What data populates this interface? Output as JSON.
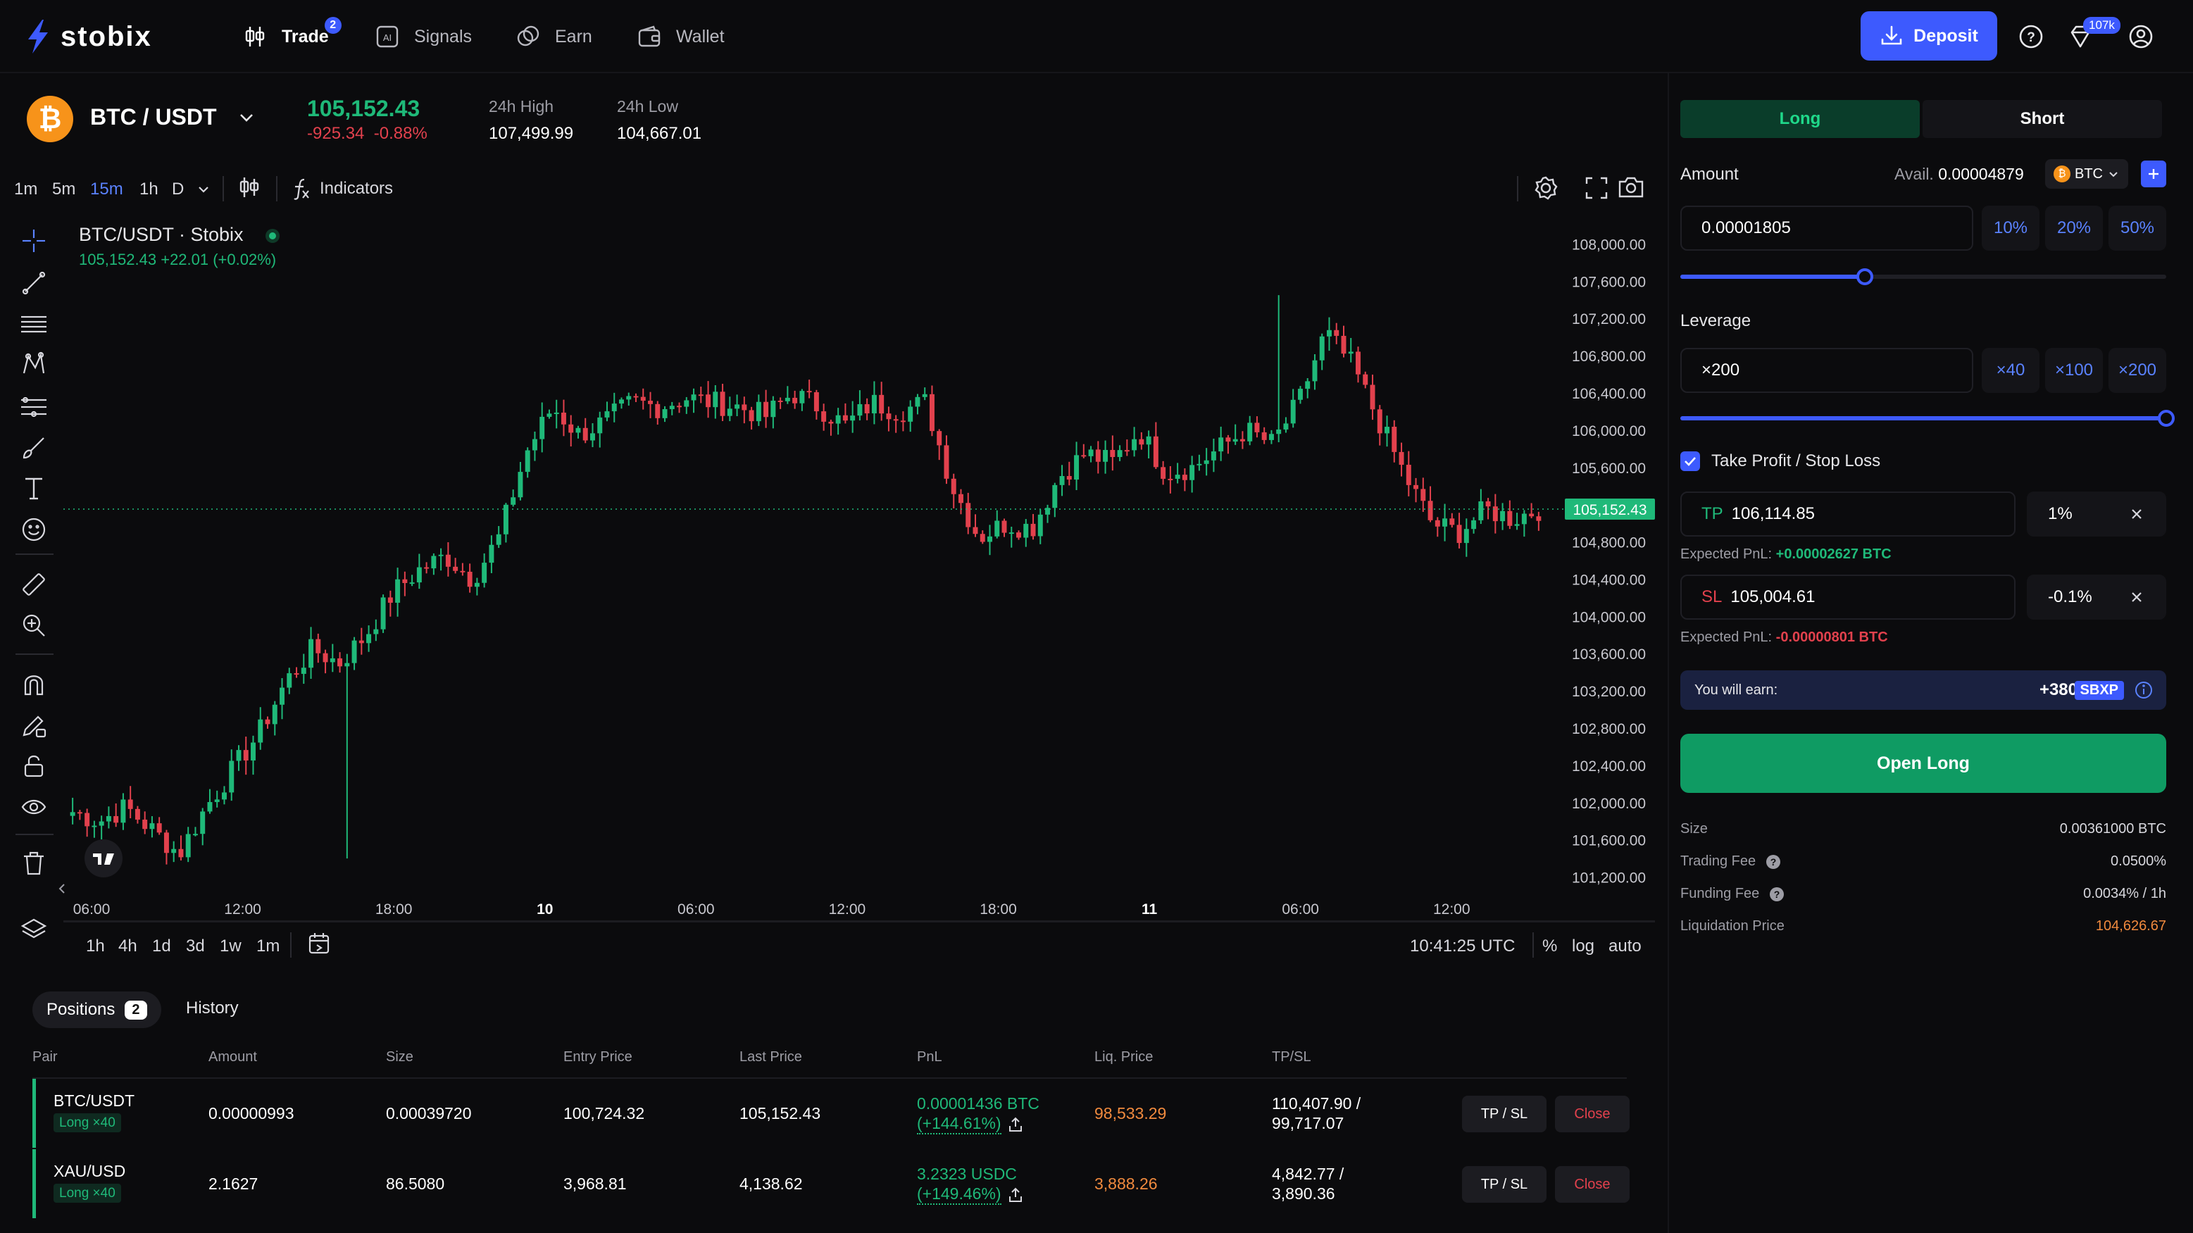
{
  "nav": {
    "logo": "stobix",
    "items": [
      {
        "label": "Trade",
        "badge": "2",
        "icon": "candles-icon"
      },
      {
        "label": "Signals",
        "icon": "ai-icon"
      },
      {
        "label": "Earn",
        "icon": "coins-icon"
      },
      {
        "label": "Wallet",
        "icon": "wallet-icon"
      }
    ],
    "deposit_label": "Deposit",
    "gift_badge": "107k"
  },
  "pair": {
    "coin_symbol": "₿",
    "name": "BTC / USDT",
    "price": "105,152.43",
    "change_abs": "-925.34",
    "change_pct": "-0.88%",
    "high_label": "24h High",
    "high_value": "107,499.99",
    "low_label": "24h Low",
    "low_value": "104,667.01"
  },
  "toolbar": {
    "timeframes": [
      "1m",
      "5m",
      "15m",
      "1h",
      "D"
    ],
    "active_timeframe": "15m",
    "indicators_label": "Indicators"
  },
  "chart_data": {
    "type": "candlestick",
    "legend_title": "BTC/USDT · Stobix",
    "legend_values": "105,152.43  +22.01 (+0.02%)",
    "y_ticks": [
      "108,000.00",
      "107,600.00",
      "107,200.00",
      "106,800.00",
      "106,400.00",
      "106,000.00",
      "105,600.00",
      "105,200.00",
      "104,800.00",
      "104,400.00",
      "104,000.00",
      "103,600.00",
      "103,200.00",
      "102,800.00",
      "102,400.00",
      "102,000.00",
      "101,600.00",
      "101,200.00"
    ],
    "ylim": [
      101000,
      108200
    ],
    "x_ticks": [
      "06:00",
      "12:00",
      "18:00",
      "10",
      "06:00",
      "12:00",
      "18:00",
      "11",
      "06:00",
      "12:00"
    ],
    "last_price": 105152.43,
    "last_price_label": "105,152.43",
    "up_color": "#1fb979",
    "down_color": "#e2414d",
    "close_path": [
      101900,
      101800,
      101950,
      101700,
      101450,
      101950,
      102350,
      102750,
      103300,
      103650,
      103500,
      103800,
      104250,
      104500,
      104650,
      104400,
      104850,
      105750,
      106250,
      105950,
      106100,
      106300,
      106250,
      106350,
      106300,
      106250,
      106150,
      106400,
      106250,
      106050,
      106300,
      106200,
      106300,
      105400,
      104850,
      105000,
      104950,
      105500,
      105750,
      105650,
      106000,
      105550,
      105600,
      105800,
      106000,
      105850,
      106300,
      107050,
      106700,
      106100,
      105500,
      105000,
      104900,
      105150,
      105050,
      105150
    ],
    "high_max": 107450,
    "low_min": 101400
  },
  "chart_bottom": {
    "ranges": [
      "1h",
      "4h",
      "1d",
      "3d",
      "1w",
      "1m"
    ],
    "clock": "10:41:25 UTC",
    "opts": [
      "%",
      "log",
      "auto"
    ]
  },
  "positions": {
    "tab_positions": "Positions",
    "tab_count": "2",
    "tab_history": "History",
    "columns": [
      "Pair",
      "Amount",
      "Size",
      "Entry Price",
      "Last Price",
      "PnL",
      "Liq. Price",
      "TP/SL"
    ],
    "rows": [
      {
        "pair": "BTC/USDT",
        "side": "Long ×40",
        "amount": "0.00000993",
        "size": "0.00039720",
        "entry": "100,724.32",
        "last": "105,152.43",
        "pnl1": "0.00001436 BTC",
        "pnl2": "(+144.61%)",
        "liq": "98,533.29",
        "tp": "110,407.90 /",
        "sl": "99,717.07",
        "btn_tpsl": "TP / SL",
        "btn_close": "Close"
      },
      {
        "pair": "XAU/USD",
        "side": "Long ×40",
        "amount": "2.1627",
        "size": "86.5080",
        "entry": "3,968.81",
        "last": "4,138.62",
        "pnl1": "3.2323 USDC",
        "pnl2": "(+149.46%)",
        "liq": "3,888.26",
        "tp": "4,842.77 /",
        "sl": "3,890.36",
        "btn_tpsl": "TP / SL",
        "btn_close": "Close"
      }
    ]
  },
  "order": {
    "tab_long": "Long",
    "tab_short": "Short",
    "amount_label": "Amount",
    "avail_label": "Avail.",
    "avail_value": "0.00004879",
    "asset": "BTC",
    "amount_value": "0.00001805",
    "amount_pcts": [
      "10%",
      "20%",
      "50%"
    ],
    "amount_slider": 0.38,
    "leverage_label": "Leverage",
    "leverage_value": "×200",
    "leverage_opts": [
      "×40",
      "×100",
      "×200"
    ],
    "leverage_slider": 1.0,
    "tpsl_label": "Take Profit / Stop Loss",
    "tp_prefix": "TP",
    "tp_value": "106,114.85",
    "tp_pct": "1%",
    "tp_pnl_label": "Expected PnL:",
    "tp_pnl_value": "+0.00002627 BTC",
    "sl_prefix": "SL",
    "sl_value": "105,004.61",
    "sl_pct": "-0.1%",
    "sl_pnl_label": "Expected PnL:",
    "sl_pnl_value": "-0.00000801 BTC",
    "earn_label": "You will earn:",
    "earn_value": "+380",
    "earn_token": "SBXP",
    "open_label": "Open Long",
    "info": [
      {
        "label": "Size",
        "value": "0.00361000 BTC",
        "help": false,
        "accent": false
      },
      {
        "label": "Trading Fee",
        "value": "0.0500%",
        "help": true,
        "accent": false
      },
      {
        "label": "Funding Fee",
        "value": "0.0034% / 1h",
        "help": true,
        "accent": false
      },
      {
        "label": "Liquidation Price",
        "value": "104,626.67",
        "help": false,
        "accent": true
      }
    ]
  }
}
